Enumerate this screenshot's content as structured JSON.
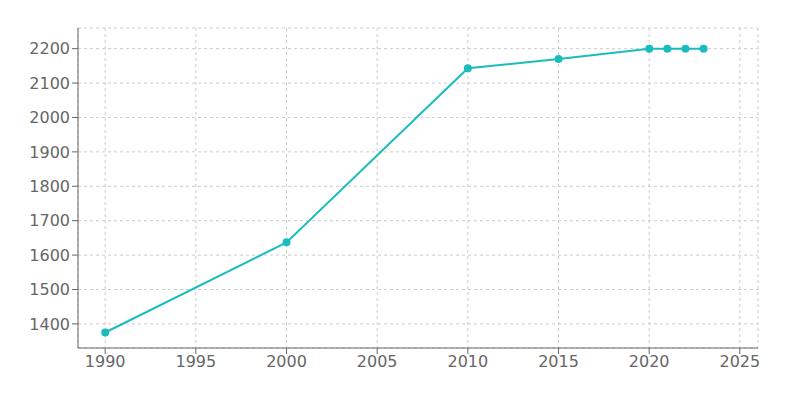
{
  "chart_data": {
    "type": "line",
    "x": [
      1990,
      2000,
      2010,
      2015,
      2020,
      2021,
      2022,
      2023
    ],
    "values": [
      1375,
      1637,
      2143,
      2170,
      2200,
      2200,
      2200,
      2200
    ],
    "color": "#1abcbe",
    "marker": "circle",
    "xlim": [
      1988.5,
      2026
    ],
    "ylim": [
      1330,
      2260
    ],
    "xticks": [
      1990,
      1995,
      2000,
      2005,
      2010,
      2015,
      2020,
      2025
    ],
    "yticks": [
      1400,
      1500,
      1600,
      1700,
      1800,
      1900,
      2000,
      2100,
      2200
    ],
    "grid": true
  }
}
